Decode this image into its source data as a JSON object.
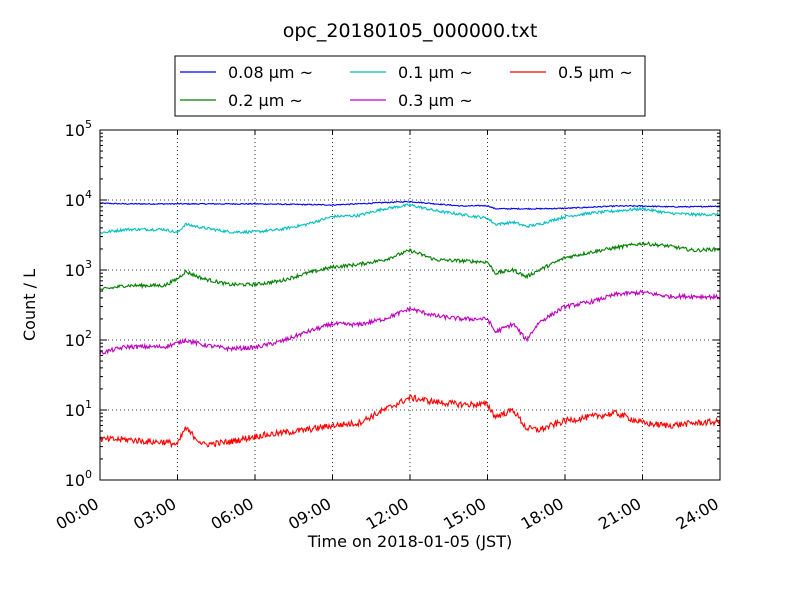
{
  "chart_data": {
    "type": "line",
    "title": "opc_20180105_000000.txt",
    "xlabel": "Time on 2018-01-05 (JST)",
    "ylabel": "Count / L",
    "yscale": "log",
    "ylim": [
      1,
      100000
    ],
    "xlim": [
      "00:00",
      "24:00"
    ],
    "x_unit": "hours",
    "grid": true,
    "legend_placement": "top",
    "x_ticks": [
      "00:00",
      "03:00",
      "06:00",
      "09:00",
      "12:00",
      "15:00",
      "18:00",
      "21:00",
      "24:00"
    ],
    "y_ticks": [
      {
        "base": "10",
        "exp": "0"
      },
      {
        "base": "10",
        "exp": "1"
      },
      {
        "base": "10",
        "exp": "2"
      },
      {
        "base": "10",
        "exp": "3"
      },
      {
        "base": "10",
        "exp": "4"
      },
      {
        "base": "10",
        "exp": "5"
      }
    ],
    "x": [
      0,
      1,
      2,
      2.5,
      3,
      3.3,
      4,
      5,
      6,
      7,
      8,
      9,
      10,
      11,
      12,
      13,
      14,
      15,
      15.3,
      16,
      16.5,
      17,
      18,
      19,
      20,
      21,
      22,
      23,
      24
    ],
    "series": [
      {
        "name": "0.08 μm ~",
        "color": "#0000ff",
        "values": [
          9000,
          8800,
          8800,
          8800,
          8800,
          8800,
          8800,
          8800,
          8800,
          8700,
          8600,
          8500,
          8800,
          9200,
          9500,
          8800,
          8200,
          8300,
          7500,
          7500,
          7500,
          7500,
          7600,
          7900,
          8200,
          8200,
          8000,
          8000,
          8200
        ]
      },
      {
        "name": "0.1 μm ~",
        "color": "#00bfbf",
        "values": [
          3400,
          3800,
          3800,
          3800,
          3400,
          4500,
          4000,
          3500,
          3500,
          3800,
          4500,
          5800,
          6000,
          7500,
          8500,
          7000,
          6200,
          5500,
          4500,
          4800,
          4200,
          4500,
          5800,
          6500,
          7000,
          7500,
          6500,
          6200,
          6200
        ]
      },
      {
        "name": "0.2 μm ~",
        "color": "#008000",
        "values": [
          520,
          600,
          600,
          600,
          750,
          950,
          750,
          620,
          620,
          700,
          900,
          1100,
          1200,
          1400,
          1900,
          1400,
          1350,
          1300,
          900,
          1000,
          800,
          1000,
          1500,
          1800,
          2100,
          2400,
          2200,
          1900,
          2000
        ]
      },
      {
        "name": "0.3 μm ~",
        "color": "#bf00bf",
        "values": [
          65,
          80,
          80,
          80,
          90,
          100,
          85,
          75,
          78,
          95,
          130,
          170,
          165,
          200,
          280,
          220,
          200,
          200,
          130,
          170,
          100,
          180,
          300,
          350,
          450,
          480,
          420,
          420,
          410
        ]
      },
      {
        "name": "0.5 μm ~",
        "color": "#ff0000",
        "values": [
          3.8,
          3.8,
          3.5,
          3.5,
          3.2,
          5.5,
          3.2,
          3.5,
          4.2,
          4.7,
          5.2,
          6,
          6.5,
          10,
          15,
          13,
          12,
          12,
          8,
          10,
          5.5,
          5.2,
          7,
          8,
          9,
          6.5,
          6,
          6.5,
          6.8
        ]
      }
    ]
  }
}
